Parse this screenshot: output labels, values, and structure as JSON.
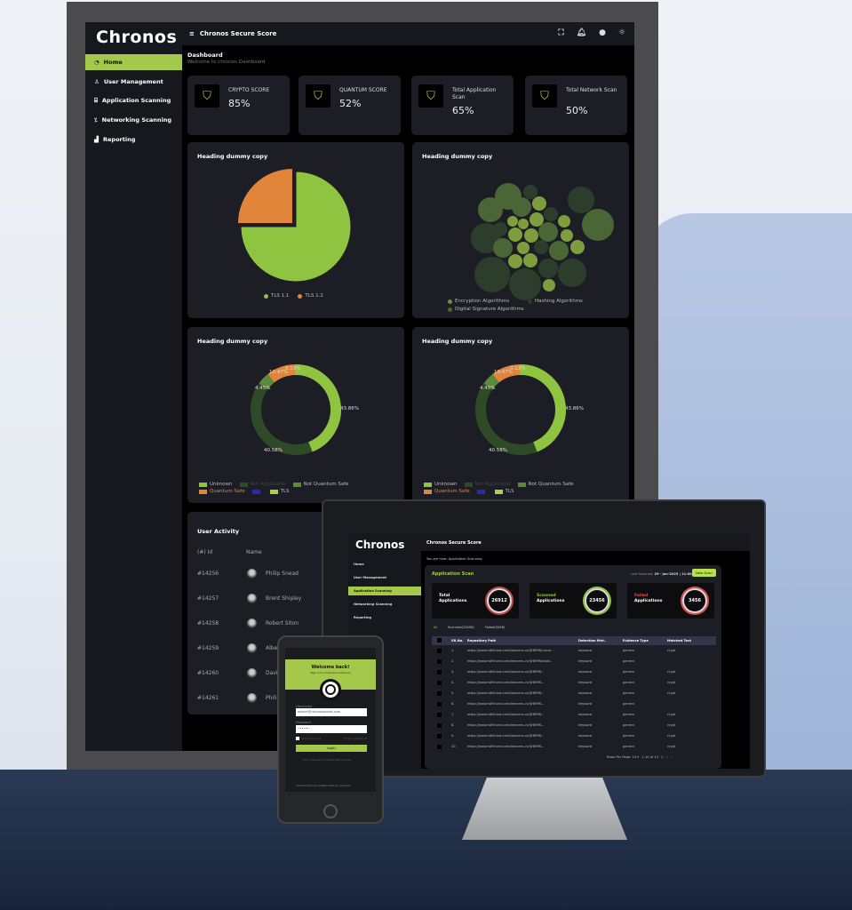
{
  "brand": "Chronos",
  "app_title": "Chronos Secure Score",
  "sidebar": {
    "items": [
      {
        "label": "Home",
        "icon": "gauge-icon"
      },
      {
        "label": "User Management",
        "icon": "users-icon"
      },
      {
        "label": "Application Scanning",
        "icon": "scan-icon"
      },
      {
        "label": "Networking Scanning",
        "icon": "network-icon"
      },
      {
        "label": "Reporting",
        "icon": "chart-icon"
      }
    ]
  },
  "page": {
    "title": "Dashboard",
    "subtitle": "Welcome to chronos Dashboard"
  },
  "kpis": [
    {
      "label": "CRYPTO SCORE",
      "value": "85%"
    },
    {
      "label": "QUANTUM SCORE",
      "value": "52%"
    },
    {
      "label": "Total Application Scan",
      "value": "65%"
    },
    {
      "label": "Total Network Scan",
      "value": "50%"
    }
  ],
  "colors": {
    "accent": "#a4c94a",
    "orange": "#e0853a",
    "panel": "#1d1e25",
    "sidebar": "#17181d"
  },
  "chart_data": [
    {
      "type": "pie",
      "title": "Heading dummy copy",
      "categories": [
        "TLS 1.1",
        "TLS 1.2"
      ],
      "values": [
        75,
        25
      ],
      "colors": [
        "#8fc440",
        "#e0853a"
      ]
    },
    {
      "type": "scatter",
      "subtype": "bubble",
      "title": "Heading dummy copy",
      "legend": [
        "Encryption Algorithms",
        "Hashing Algorithms",
        "Digital Signature Algorithms"
      ],
      "colors": [
        "#6f8f3a",
        "#2d3d2b",
        "#4a6536"
      ]
    },
    {
      "type": "pie",
      "subtype": "donut",
      "title": "Heading dummy copy",
      "categories": [
        "Unknown",
        "Not Applicable",
        "Not Quantum Safe",
        "Quantum Safe",
        "TLS"
      ],
      "values": [
        43.86,
        40.58,
        4.45,
        10.47,
        0.13
      ],
      "labels": [
        "43.86%",
        "40.58%",
        "4.45%",
        "10.47%",
        "0.13%"
      ],
      "legend": [
        "Unknown",
        "Not Applicable",
        "Not Quantum Safe",
        "Quantum Safe",
        "",
        "TLS"
      ],
      "colors": [
        "#8fc440",
        "#2e4a26",
        "#5b8a3a",
        "#e0853a",
        "#e8e0a0"
      ],
      "legend_colors": [
        "#8fc440",
        "#2e4a26",
        "#5b8a3a",
        "#e0853a",
        "#2a2ab0",
        "#a8d24a"
      ]
    },
    {
      "type": "pie",
      "subtype": "donut",
      "title": "Heading dummy copy",
      "categories": [
        "Unknown",
        "Not Applicable",
        "Not Quantum Safe",
        "Quantum Safe",
        "TLS"
      ],
      "values": [
        43.86,
        40.58,
        4.45,
        10.47,
        0.13
      ],
      "labels": [
        "43.86%",
        "40.58%",
        "4.45%",
        "10.47%",
        "0.13%"
      ],
      "legend": [
        "Unknown",
        "Not Applicable",
        "Not Quantum Safe",
        "Quantum Safe",
        "",
        "TLS"
      ],
      "colors": [
        "#8fc440",
        "#2e4a26",
        "#5b8a3a",
        "#e0853a",
        "#e8e0a0"
      ],
      "legend_colors": [
        "#8fc440",
        "#2e4a26",
        "#5b8a3a",
        "#e0853a",
        "#2a2ab0",
        "#a8d24a"
      ]
    }
  ],
  "user_activity": {
    "title": "User Activity",
    "col_id": "(#) Id",
    "col_name": "Name",
    "rows": [
      {
        "id": "#14256",
        "name": "Philip Snead"
      },
      {
        "id": "#14257",
        "name": "Brent Shipley"
      },
      {
        "id": "#14258",
        "name": "Robert Siton"
      },
      {
        "id": "#14259",
        "name": "Albe"
      },
      {
        "id": "#14260",
        "name": "Davi"
      },
      {
        "id": "#14261",
        "name": "Phili"
      }
    ]
  },
  "scan": {
    "breadcrumb": "You are here: Application Scanning",
    "title": "Application Scan",
    "last_scanned_label": "Last Scanned:",
    "last_scanned": "29 - Jan-2025 | 11:00pm",
    "new_scan": "New Scan",
    "stats": [
      {
        "l1": "Total",
        "l2": "Applications",
        "value": "26912",
        "color": "#ffffff"
      },
      {
        "l1": "Scanned",
        "l2": "Applications",
        "value": "23456",
        "color": "#8fc440"
      },
      {
        "l1": "Failed",
        "l2": "Applications",
        "value": "3456",
        "color": "#e05050"
      }
    ],
    "tabs": [
      "All",
      "Scanned(23456)",
      "Failed(3456)"
    ],
    "columns": [
      "SR.No.",
      "Repository Path",
      "Detection Met..",
      "Evidence Type",
      "Matched Text"
    ],
    "rows": [
      [
        "1.",
        "https://www.hdfcfund.com/learners-cs/QHBPW/uncar...",
        "keyword",
        "generic",
        "crypt"
      ],
      [
        "2.",
        "https://www.hdfcfund.com/learners-cs/QHBPW/aboli...",
        "keyword",
        "generic",
        ""
      ],
      [
        "3.",
        "https://www.hdfcfund.com/learners-cs/QHBPW...",
        "keyword",
        "generic",
        "crypt"
      ],
      [
        "4.",
        "https://www.hdfcfund.com/learners-cs/QHBPW...",
        "keyword",
        "generic",
        "crypt"
      ],
      [
        "5.",
        "https://www.hdfcfund.com/learners-cs/QHBPW...",
        "keyword",
        "generic",
        "crypt"
      ],
      [
        "6.",
        "https://www.hdfcfund.com/learners-cs/QHBPW...",
        "keyword",
        "generic",
        ""
      ],
      [
        "7.",
        "https://www.hdfcfund.com/learners-cs/QHBPW...",
        "keyword",
        "generic",
        "crypt"
      ],
      [
        "8.",
        "https://www.hdfcfund.com/learners-cs/QHBPW...",
        "keyword",
        "generic",
        "crypt"
      ],
      [
        "9.",
        "https://www.hdfcfund.com/learners-cs/QHBPW...",
        "keyword",
        "generic",
        "crypt"
      ],
      [
        "10.",
        "https://www.hdfcfund.com/learners-cs/QHBPW...",
        "keyword",
        "generic",
        "crypt"
      ]
    ],
    "rows_per_page_label": "Rows Per Page:",
    "rows_per_page": "10",
    "range": "1-10 of 13"
  },
  "login": {
    "title": "Welcome back!",
    "subtitle": "Sign in to continue to Chronos",
    "username_label": "Username",
    "username": "admin@chronosboard.com",
    "password_label": "Password",
    "password": "••••••",
    "remember": "Remember me",
    "forgot": "Forgot password?",
    "login_btn": "Login",
    "signup_prompt": "Don't have an account?",
    "signup": "Signup now",
    "footer": "©2025 Chronos Crafted with by Chronos"
  }
}
